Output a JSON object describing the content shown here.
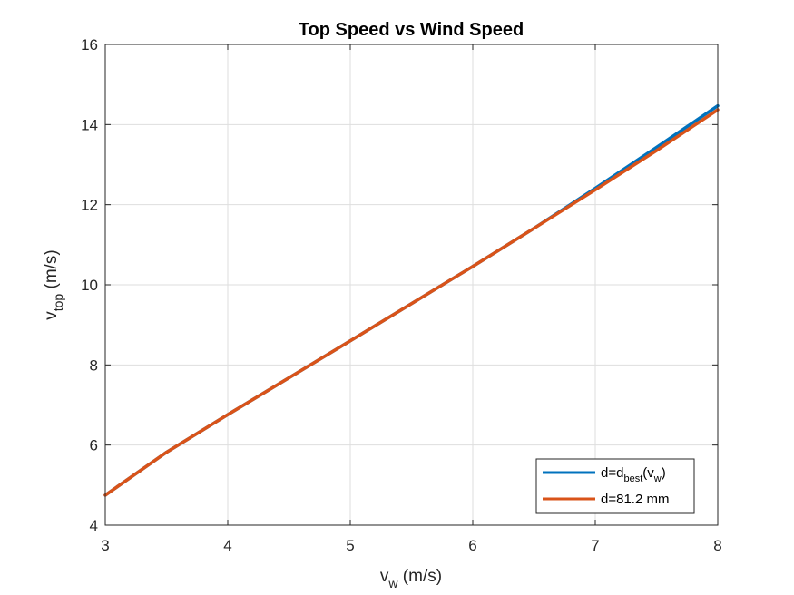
{
  "chart_data": {
    "type": "line",
    "title": "Top Speed vs Wind Speed",
    "xlabel": {
      "base": "v",
      "sub": "w",
      "unit": " (m/s)"
    },
    "ylabel": {
      "base": "v",
      "sub": "top",
      "unit": " (m/s)"
    },
    "xlim": [
      3,
      8
    ],
    "ylim": [
      4,
      16
    ],
    "xticks": [
      3,
      4,
      5,
      6,
      7,
      8
    ],
    "yticks": [
      4,
      6,
      8,
      10,
      12,
      14,
      16
    ],
    "grid": true,
    "legend_position": "bottom-right",
    "series": [
      {
        "label_parts": [
          "d=d",
          "best",
          "(v",
          "w",
          ")"
        ],
        "color": "#0072BD",
        "x": [
          3,
          3.5,
          4,
          4.5,
          5,
          5.5,
          6,
          6.5,
          7,
          7.5,
          8
        ],
        "y": [
          4.75,
          5.82,
          6.76,
          7.68,
          8.6,
          9.53,
          10.46,
          11.41,
          12.41,
          13.43,
          14.47
        ]
      },
      {
        "label": "d=81.2 mm",
        "color": "#D95319",
        "x": [
          3,
          3.5,
          4,
          4.5,
          5,
          5.5,
          6,
          6.5,
          7,
          7.5,
          8
        ],
        "y": [
          4.75,
          5.82,
          6.76,
          7.68,
          8.6,
          9.53,
          10.46,
          11.41,
          12.37,
          13.35,
          14.37
        ]
      }
    ]
  }
}
